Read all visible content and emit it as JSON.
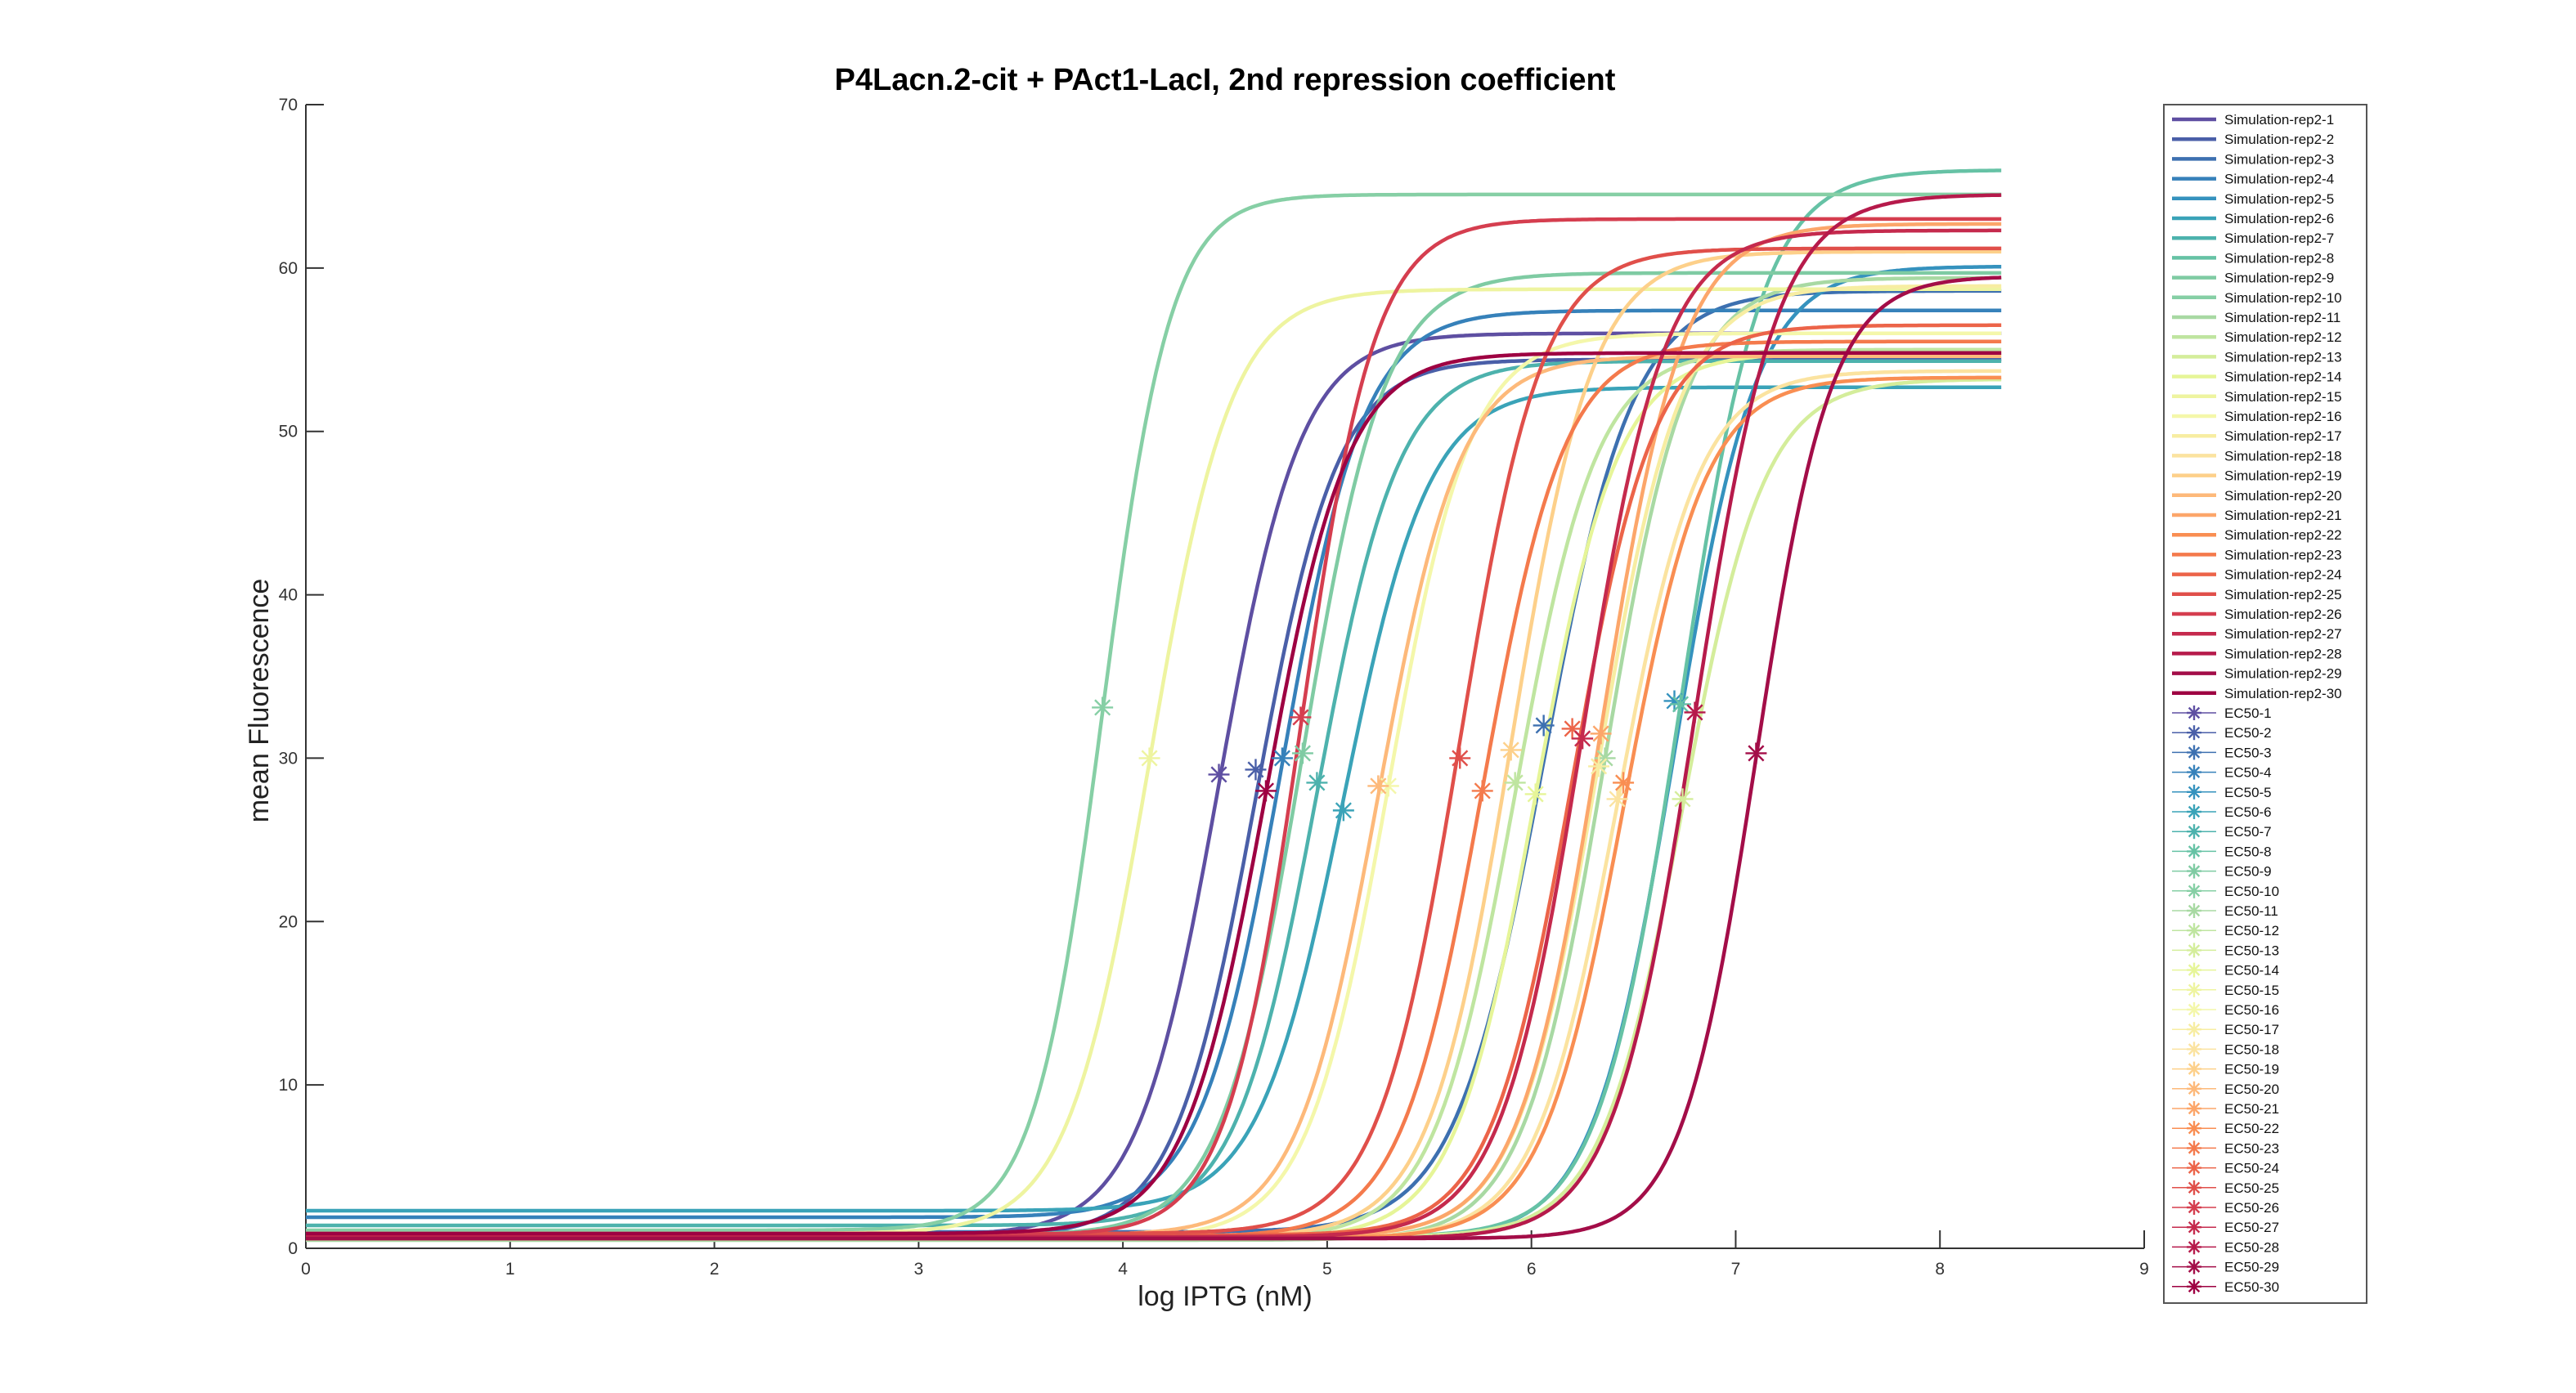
{
  "chart_data": {
    "type": "line",
    "title": "P4Lacn.2-cit + PAct1-LacI, 2nd repression coefficient",
    "xlabel": "log IPTG (nM)",
    "ylabel": "mean Fluorescence",
    "xlim": [
      0,
      9
    ],
    "ylim": [
      0,
      70
    ],
    "xticks": [
      0,
      1,
      2,
      3,
      4,
      5,
      6,
      7,
      8,
      9
    ],
    "yticks": [
      0,
      10,
      20,
      30,
      40,
      50,
      60,
      70
    ],
    "grid": false,
    "legend_position": "right",
    "x_max_curve": 8.3,
    "series": [
      {
        "name": "Simulation-rep2-1",
        "color": "#5e4fa2",
        "base": 0.8,
        "top": 56.0,
        "ec50": 4.47,
        "slope": 5.0
      },
      {
        "name": "Simulation-rep2-2",
        "color": "#4a5fa8",
        "base": 0.7,
        "top": 54.4,
        "ec50": 4.65,
        "slope": 5.0
      },
      {
        "name": "Simulation-rep2-3",
        "color": "#3d70b0",
        "base": 1.0,
        "top": 58.6,
        "ec50": 6.06,
        "slope": 4.6
      },
      {
        "name": "Simulation-rep2-4",
        "color": "#3681ba",
        "base": 1.9,
        "top": 57.4,
        "ec50": 4.78,
        "slope": 5.0
      },
      {
        "name": "Simulation-rep2-5",
        "color": "#3592be",
        "base": 0.6,
        "top": 60.1,
        "ec50": 6.7,
        "slope": 5.0
      },
      {
        "name": "Simulation-rep2-6",
        "color": "#3aa3b8",
        "base": 2.3,
        "top": 52.7,
        "ec50": 5.08,
        "slope": 4.8
      },
      {
        "name": "Simulation-rep2-7",
        "color": "#4db2ad",
        "base": 1.4,
        "top": 54.3,
        "ec50": 4.95,
        "slope": 5.0
      },
      {
        "name": "Simulation-rep2-8",
        "color": "#66c2a5",
        "base": 0.7,
        "top": 66.0,
        "ec50": 6.73,
        "slope": 5.0
      },
      {
        "name": "Simulation-rep2-9",
        "color": "#7fcba3",
        "base": 0.8,
        "top": 59.7,
        "ec50": 4.88,
        "slope": 5.0
      },
      {
        "name": "Simulation-rep2-10",
        "color": "#86cfa5",
        "base": 1.1,
        "top": 64.5,
        "ec50": 3.9,
        "slope": 6.0
      },
      {
        "name": "Simulation-rep2-11",
        "color": "#a8d9a3",
        "base": 0.5,
        "top": 59.4,
        "ec50": 6.36,
        "slope": 5.0
      },
      {
        "name": "Simulation-rep2-12",
        "color": "#bfe5a0",
        "base": 0.6,
        "top": 55.0,
        "ec50": 5.92,
        "slope": 5.0
      },
      {
        "name": "Simulation-rep2-13",
        "color": "#d4ed9b",
        "base": 0.7,
        "top": 53.2,
        "ec50": 6.74,
        "slope": 5.0
      },
      {
        "name": "Simulation-rep2-14",
        "color": "#e6f598",
        "base": 0.6,
        "top": 54.8,
        "ec50": 6.02,
        "slope": 5.0
      },
      {
        "name": "Simulation-rep2-15",
        "color": "#eef4a0",
        "base": 0.9,
        "top": 58.7,
        "ec50": 4.13,
        "slope": 5.0
      },
      {
        "name": "Simulation-rep2-16",
        "color": "#f4f7aa",
        "base": 0.6,
        "top": 56.0,
        "ec50": 5.3,
        "slope": 5.0
      },
      {
        "name": "Simulation-rep2-17",
        "color": "#f7eda2",
        "base": 0.7,
        "top": 58.9,
        "ec50": 6.33,
        "slope": 5.0
      },
      {
        "name": "Simulation-rep2-18",
        "color": "#fbe3a0",
        "base": 0.6,
        "top": 53.7,
        "ec50": 6.42,
        "slope": 5.0
      },
      {
        "name": "Simulation-rep2-19",
        "color": "#fdd08a",
        "base": 0.7,
        "top": 61.0,
        "ec50": 5.9,
        "slope": 5.0
      },
      {
        "name": "Simulation-rep2-20",
        "color": "#fdb97a",
        "base": 0.8,
        "top": 54.6,
        "ec50": 5.25,
        "slope": 5.0
      },
      {
        "name": "Simulation-rep2-21",
        "color": "#fca66a",
        "base": 0.7,
        "top": 62.7,
        "ec50": 6.34,
        "slope": 5.0
      },
      {
        "name": "Simulation-rep2-22",
        "color": "#f98e52",
        "base": 0.6,
        "top": 53.3,
        "ec50": 6.45,
        "slope": 5.0
      },
      {
        "name": "Simulation-rep2-23",
        "color": "#f47a4c",
        "base": 0.7,
        "top": 55.5,
        "ec50": 5.76,
        "slope": 5.0
      },
      {
        "name": "Simulation-rep2-24",
        "color": "#ec6449",
        "base": 0.8,
        "top": 56.5,
        "ec50": 6.2,
        "slope": 5.0
      },
      {
        "name": "Simulation-rep2-25",
        "color": "#e04f4a",
        "base": 0.9,
        "top": 61.2,
        "ec50": 5.65,
        "slope": 5.0
      },
      {
        "name": "Simulation-rep2-26",
        "color": "#d53e4f",
        "base": 0.8,
        "top": 63.0,
        "ec50": 4.87,
        "slope": 5.5
      },
      {
        "name": "Simulation-rep2-27",
        "color": "#c52a4d",
        "base": 0.7,
        "top": 62.3,
        "ec50": 6.25,
        "slope": 5.0
      },
      {
        "name": "Simulation-rep2-28",
        "color": "#b61a4b",
        "base": 0.6,
        "top": 64.5,
        "ec50": 6.8,
        "slope": 5.0
      },
      {
        "name": "Simulation-rep2-29",
        "color": "#a30d48",
        "base": 0.6,
        "top": 59.5,
        "ec50": 7.1,
        "slope": 5.5
      },
      {
        "name": "Simulation-rep2-30",
        "color": "#9e0142",
        "base": 0.9,
        "top": 54.8,
        "ec50": 4.7,
        "slope": 5.0
      }
    ],
    "ec50_markers": [
      {
        "name": "EC50-1",
        "color": "#5e4fa2",
        "x": 4.47,
        "y": 29.0
      },
      {
        "name": "EC50-2",
        "color": "#4a5fa8",
        "x": 4.65,
        "y": 29.3
      },
      {
        "name": "EC50-3",
        "color": "#3d70b0",
        "x": 6.06,
        "y": 32.0
      },
      {
        "name": "EC50-4",
        "color": "#3681ba",
        "x": 4.78,
        "y": 30.0
      },
      {
        "name": "EC50-5",
        "color": "#3592be",
        "x": 6.7,
        "y": 33.5
      },
      {
        "name": "EC50-6",
        "color": "#3aa3b8",
        "x": 5.08,
        "y": 26.8
      },
      {
        "name": "EC50-7",
        "color": "#4db2ad",
        "x": 4.95,
        "y": 28.5
      },
      {
        "name": "EC50-8",
        "color": "#66c2a5",
        "x": 6.73,
        "y": 33.3
      },
      {
        "name": "EC50-9",
        "color": "#7fcba3",
        "x": 4.88,
        "y": 30.3
      },
      {
        "name": "EC50-10",
        "color": "#86cfa5",
        "x": 3.9,
        "y": 33.1
      },
      {
        "name": "EC50-11",
        "color": "#a8d9a3",
        "x": 6.36,
        "y": 30.0
      },
      {
        "name": "EC50-12",
        "color": "#bfe5a0",
        "x": 5.92,
        "y": 28.5
      },
      {
        "name": "EC50-13",
        "color": "#d4ed9b",
        "x": 6.74,
        "y": 27.5
      },
      {
        "name": "EC50-14",
        "color": "#e6f598",
        "x": 6.02,
        "y": 27.8
      },
      {
        "name": "EC50-15",
        "color": "#eef4a0",
        "x": 4.13,
        "y": 30.0
      },
      {
        "name": "EC50-16",
        "color": "#f4f7aa",
        "x": 5.3,
        "y": 28.3
      },
      {
        "name": "EC50-17",
        "color": "#f7eda2",
        "x": 6.33,
        "y": 29.5
      },
      {
        "name": "EC50-18",
        "color": "#fbe3a0",
        "x": 6.42,
        "y": 27.5
      },
      {
        "name": "EC50-19",
        "color": "#fdd08a",
        "x": 5.9,
        "y": 30.5
      },
      {
        "name": "EC50-20",
        "color": "#fdb97a",
        "x": 5.25,
        "y": 28.3
      },
      {
        "name": "EC50-21",
        "color": "#fca66a",
        "x": 6.34,
        "y": 31.5
      },
      {
        "name": "EC50-22",
        "color": "#f98e52",
        "x": 6.45,
        "y": 28.5
      },
      {
        "name": "EC50-23",
        "color": "#f47a4c",
        "x": 5.76,
        "y": 28.0
      },
      {
        "name": "EC50-24",
        "color": "#ec6449",
        "x": 6.2,
        "y": 31.8
      },
      {
        "name": "EC50-25",
        "color": "#e04f4a",
        "x": 5.65,
        "y": 30.0
      },
      {
        "name": "EC50-26",
        "color": "#d53e4f",
        "x": 4.87,
        "y": 32.5
      },
      {
        "name": "EC50-27",
        "color": "#c52a4d",
        "x": 6.25,
        "y": 31.2
      },
      {
        "name": "EC50-28",
        "color": "#b61a4b",
        "x": 6.8,
        "y": 32.8
      },
      {
        "name": "EC50-29",
        "color": "#a30d48",
        "x": 7.1,
        "y": 30.3
      },
      {
        "name": "EC50-30",
        "color": "#9e0142",
        "x": 4.7,
        "y": 28.0
      }
    ]
  }
}
